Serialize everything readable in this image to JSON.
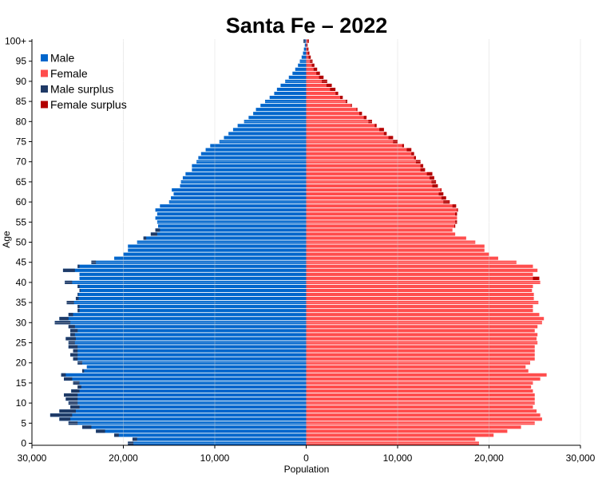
{
  "chart_data": {
    "type": "bar",
    "orientation": "horizontal",
    "title": "Santa Fe  –  2022",
    "xlabel": "Population",
    "ylabel": "Age",
    "xlim": [
      -30000,
      30000
    ],
    "x_ticks": [
      {
        "value": -30000,
        "label": "30,000"
      },
      {
        "value": -20000,
        "label": "20,000"
      },
      {
        "value": -10000,
        "label": "10,000"
      },
      {
        "value": 0,
        "label": "0"
      },
      {
        "value": 10000,
        "label": "10,000"
      },
      {
        "value": 20000,
        "label": "20,000"
      },
      {
        "value": 30000,
        "label": "30,000"
      }
    ],
    "y_ticks": [
      {
        "age": 0,
        "label": "0"
      },
      {
        "age": 5,
        "label": "5"
      },
      {
        "age": 10,
        "label": "10"
      },
      {
        "age": 15,
        "label": "15"
      },
      {
        "age": 20,
        "label": "20"
      },
      {
        "age": 25,
        "label": "25"
      },
      {
        "age": 30,
        "label": "30"
      },
      {
        "age": 35,
        "label": "35"
      },
      {
        "age": 40,
        "label": "40"
      },
      {
        "age": 45,
        "label": "45"
      },
      {
        "age": 50,
        "label": "50"
      },
      {
        "age": 55,
        "label": "55"
      },
      {
        "age": 60,
        "label": "60"
      },
      {
        "age": 65,
        "label": "65"
      },
      {
        "age": 70,
        "label": "70"
      },
      {
        "age": 75,
        "label": "75"
      },
      {
        "age": 80,
        "label": "80"
      },
      {
        "age": 85,
        "label": "85"
      },
      {
        "age": 90,
        "label": "90"
      },
      {
        "age": 95,
        "label": "95"
      },
      {
        "age": 100,
        "label": "100+"
      }
    ],
    "legend_position": "top-left",
    "legend": [
      {
        "label": "Male",
        "color": "#0066cc"
      },
      {
        "label": "Female",
        "color": "#ff4d4d"
      },
      {
        "label": "Male surplus",
        "color": "#1f3a66"
      },
      {
        "label": "Female surplus",
        "color": "#b30000"
      }
    ],
    "ages": [
      0,
      1,
      2,
      3,
      4,
      5,
      6,
      7,
      8,
      9,
      10,
      11,
      12,
      13,
      14,
      15,
      16,
      17,
      18,
      19,
      20,
      21,
      22,
      23,
      24,
      25,
      26,
      27,
      28,
      29,
      30,
      31,
      32,
      33,
      34,
      35,
      36,
      37,
      38,
      39,
      40,
      41,
      42,
      43,
      44,
      45,
      46,
      47,
      48,
      49,
      50,
      51,
      52,
      53,
      54,
      55,
      56,
      57,
      58,
      59,
      60,
      61,
      62,
      63,
      64,
      65,
      66,
      67,
      68,
      69,
      70,
      71,
      72,
      73,
      74,
      75,
      76,
      77,
      78,
      79,
      80,
      81,
      82,
      83,
      84,
      85,
      86,
      87,
      88,
      89,
      90,
      91,
      92,
      93,
      94,
      95,
      96,
      97,
      98,
      99,
      100
    ],
    "series": [
      {
        "name": "Male",
        "values": [
          19500,
          19000,
          21000,
          23000,
          24500,
          26000,
          27000,
          28000,
          27000,
          25800,
          26000,
          26300,
          26500,
          25700,
          25000,
          25500,
          26500,
          26800,
          24500,
          24000,
          25000,
          25500,
          25800,
          25500,
          26000,
          26000,
          26300,
          25800,
          25800,
          26000,
          27500,
          27000,
          26000,
          25000,
          25000,
          26200,
          25200,
          25000,
          24800,
          25000,
          26400,
          24800,
          24800,
          26600,
          25000,
          23500,
          21000,
          20000,
          19500,
          19500,
          18500,
          17800,
          17000,
          16500,
          16200,
          16300,
          16500,
          16300,
          16500,
          16000,
          15000,
          14800,
          14500,
          14700,
          13800,
          13700,
          13500,
          13200,
          12500,
          12500,
          12000,
          11800,
          11500,
          11000,
          10500,
          9500,
          9000,
          8500,
          8000,
          7500,
          6800,
          6300,
          5800,
          5500,
          5000,
          4500,
          4000,
          3500,
          3200,
          2800,
          2300,
          1900,
          1500,
          1200,
          900,
          700,
          500,
          350,
          250,
          150,
          300
        ]
      },
      {
        "name": "Female",
        "values": [
          18900,
          18500,
          20500,
          22000,
          23500,
          25000,
          25800,
          25600,
          25200,
          24800,
          25000,
          25000,
          25000,
          24800,
          24600,
          24800,
          25600,
          26300,
          24300,
          24000,
          24500,
          25000,
          25000,
          25000,
          25000,
          25300,
          25200,
          25300,
          25000,
          25300,
          25800,
          26000,
          25500,
          24800,
          24800,
          25400,
          24900,
          24900,
          24700,
          24800,
          25600,
          25500,
          24800,
          25300,
          24800,
          23000,
          21000,
          20000,
          19500,
          19500,
          18500,
          17500,
          16300,
          16000,
          16300,
          16500,
          16500,
          16500,
          16600,
          16400,
          15700,
          15300,
          15000,
          14800,
          14400,
          14200,
          14000,
          13800,
          13000,
          12800,
          12500,
          12000,
          11800,
          11500,
          10700,
          10000,
          9500,
          8800,
          8500,
          7700,
          7200,
          6600,
          6100,
          5600,
          4900,
          4300,
          3700,
          3200,
          2600,
          2200,
          1700,
          1400,
          1100,
          800,
          600,
          400,
          250,
          160,
          100,
          60,
          120
        ]
      },
      {
        "name": "Male surplus",
        "values": [
          600,
          500,
          500,
          1000,
          1000,
          1000,
          1200,
          2400,
          1800,
          1000,
          1000,
          1300,
          1500,
          900,
          400,
          700,
          900,
          500,
          200,
          0,
          500,
          500,
          800,
          500,
          1000,
          700,
          1100,
          500,
          800,
          700,
          1700,
          1000,
          500,
          200,
          200,
          800,
          300,
          100,
          100,
          200,
          800,
          0,
          0,
          1300,
          200,
          500,
          0,
          0,
          0,
          0,
          0,
          300,
          700,
          500,
          0,
          0,
          0,
          0,
          0,
          0,
          0,
          0,
          0,
          0,
          0,
          0,
          0,
          0,
          0,
          0,
          0,
          0,
          0,
          0,
          0,
          0,
          0,
          0,
          0,
          0,
          0,
          0,
          0,
          0,
          0,
          0,
          0,
          0,
          0,
          0,
          0,
          0,
          0,
          0,
          0,
          0,
          0,
          0,
          0,
          0,
          180
        ]
      },
      {
        "name": "Female surplus",
        "values": [
          0,
          0,
          0,
          0,
          0,
          0,
          0,
          0,
          0,
          0,
          0,
          0,
          0,
          0,
          0,
          0,
          0,
          0,
          0,
          0,
          0,
          0,
          0,
          0,
          0,
          0,
          0,
          0,
          0,
          0,
          0,
          0,
          0,
          0,
          0,
          0,
          0,
          0,
          0,
          0,
          0,
          700,
          0,
          0,
          0,
          0,
          0,
          0,
          0,
          0,
          0,
          0,
          0,
          0,
          100,
          200,
          0,
          200,
          100,
          400,
          700,
          500,
          500,
          100,
          600,
          500,
          500,
          600,
          500,
          300,
          500,
          200,
          300,
          500,
          200,
          500,
          500,
          300,
          500,
          200,
          400,
          300,
          300,
          100,
          -100,
          -200,
          -300,
          -300,
          -600,
          -600,
          -600,
          -500,
          -400,
          -400,
          -300,
          -300,
          -250,
          -190,
          -150,
          -90,
          -180
        ]
      }
    ]
  }
}
